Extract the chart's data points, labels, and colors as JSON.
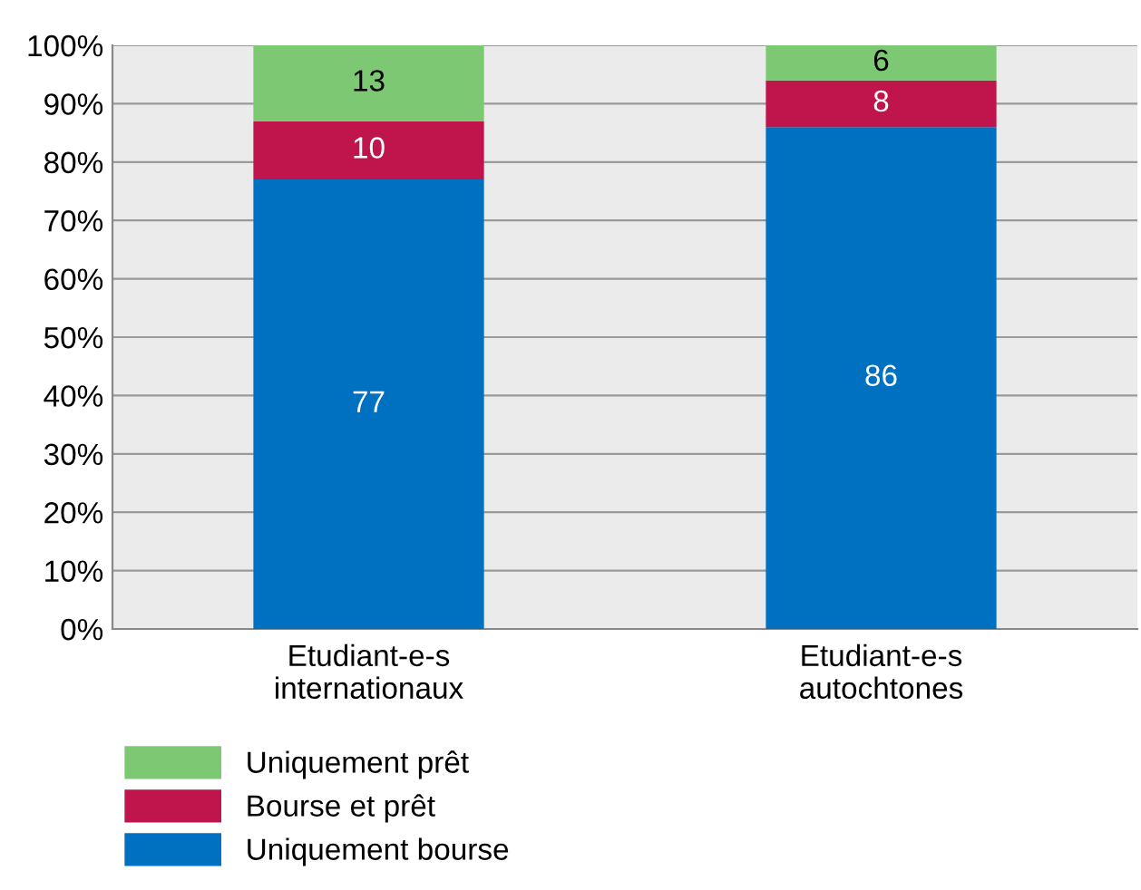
{
  "chart_data": {
    "type": "bar",
    "stacked": true,
    "categories": [
      "Etudiant-e-s\ninternationaux",
      "Etudiant-e-s\nautochtones"
    ],
    "series": [
      {
        "name": "Uniquement bourse",
        "color": "#0070c0",
        "values": [
          77,
          86
        ]
      },
      {
        "name": "Bourse et prêt",
        "color": "#c0144c",
        "values": [
          10,
          8
        ]
      },
      {
        "name": "Uniquement prêt",
        "color": "#7dc873",
        "values": [
          13,
          6
        ]
      }
    ],
    "ylim": [
      0,
      100
    ],
    "yticks": [
      {
        "value": 0,
        "label": "0%"
      },
      {
        "value": 10,
        "label": "10%"
      },
      {
        "value": 20,
        "label": "20%"
      },
      {
        "value": 30,
        "label": "30%"
      },
      {
        "value": 40,
        "label": "40%"
      },
      {
        "value": 50,
        "label": "50%"
      },
      {
        "value": 60,
        "label": "60%"
      },
      {
        "value": 70,
        "label": "70%"
      },
      {
        "value": 80,
        "label": "80%"
      },
      {
        "value": 90,
        "label": "90%"
      },
      {
        "value": 100,
        "label": "100%"
      }
    ],
    "grid": "y",
    "legend": "bottom left",
    "data_labels": true
  }
}
